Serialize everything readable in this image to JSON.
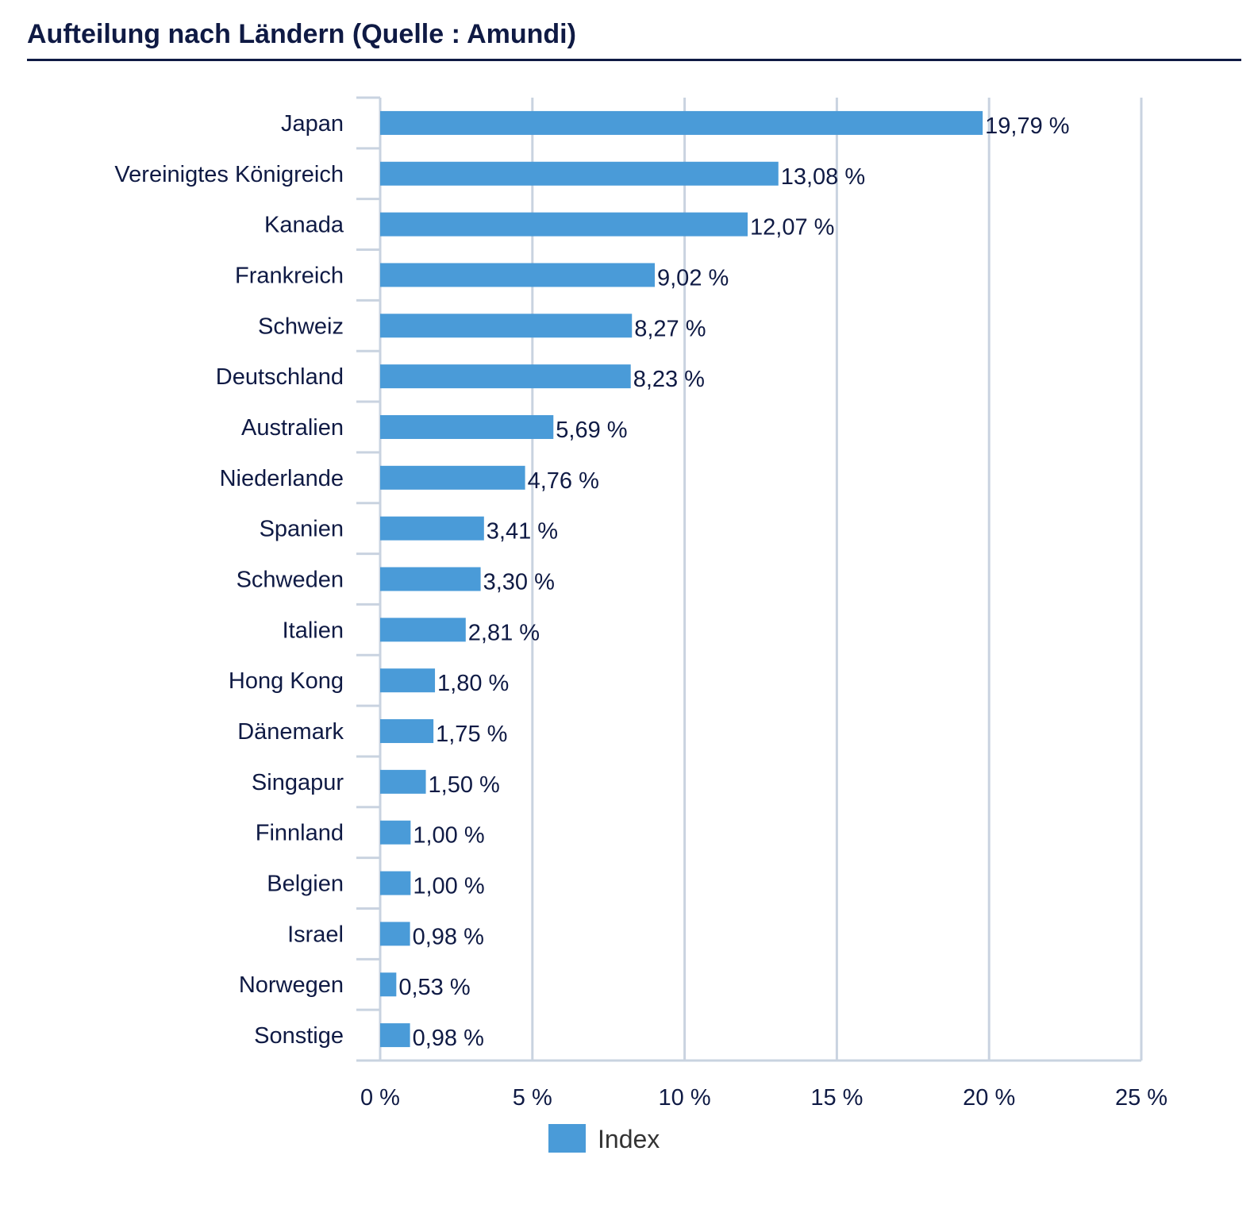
{
  "chart_data": {
    "type": "bar",
    "orientation": "horizontal",
    "title": "Aufteilung nach Ländern (Quelle : Amundi)",
    "categories": [
      "Japan",
      "Vereinigtes Königreich",
      "Kanada",
      "Frankreich",
      "Schweiz",
      "Deutschland",
      "Australien",
      "Niederlande",
      "Spanien",
      "Schweden",
      "Italien",
      "Hong Kong",
      "Dänemark",
      "Singapur",
      "Finnland",
      "Belgien",
      "Israel",
      "Norwegen",
      "Sonstige"
    ],
    "series": [
      {
        "name": "Index",
        "color": "#4a9bd8",
        "values": [
          19.79,
          13.08,
          12.07,
          9.02,
          8.27,
          8.23,
          5.69,
          4.76,
          3.41,
          3.3,
          2.81,
          1.8,
          1.75,
          1.5,
          1.0,
          1.0,
          0.98,
          0.53,
          0.98
        ],
        "value_labels": [
          "19,79 %",
          "13,08 %",
          "12,07 %",
          "9,02 %",
          "8,27 %",
          "8,23 %",
          "5,69 %",
          "4,76 %",
          "3,41 %",
          "3,30 %",
          "2,81 %",
          "1,80 %",
          "1,75 %",
          "1,50 %",
          "1,00 %",
          "1,00 %",
          "0,98 %",
          "0,53 %",
          "0,98 %"
        ]
      }
    ],
    "xlim": [
      0,
      25
    ],
    "xticks": [
      0,
      5,
      10,
      15,
      20,
      25
    ],
    "xtick_labels": [
      "0 %",
      "5 %",
      "10 %",
      "15 %",
      "20 %",
      "25 %"
    ],
    "grid": "vertical",
    "legend": {
      "position": "bottom-center",
      "label": "Index"
    },
    "colors": {
      "bar": "#4a9bd8",
      "text": "#0f1a44",
      "grid": "#c9d3e0"
    }
  }
}
